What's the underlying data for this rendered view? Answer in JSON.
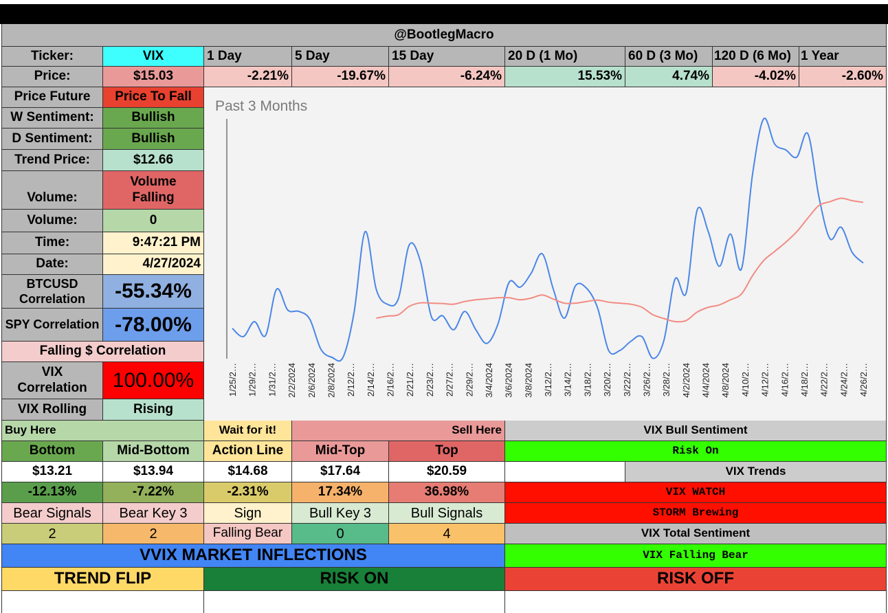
{
  "header": {
    "title": "@BootlegMacro"
  },
  "ticker_row": {
    "label": "Ticker:",
    "ticker": "VIX",
    "periods": [
      "1 Day",
      "5 Day",
      "15 Day",
      "20 D (1 Mo)",
      "60 D (3 Mo)",
      "120 D (6 Mo)",
      "1 Year"
    ]
  },
  "price_row": {
    "label": "Price:",
    "price": "$15.03",
    "changes": [
      "-2.21%",
      "-19.67%",
      "-6.24%",
      "15.53%",
      "4.74%",
      "-4.02%",
      "-2.60%"
    ]
  },
  "left_panel": {
    "price_future": {
      "label": "Price Future",
      "value": "Price To Fall"
    },
    "w_sentiment": {
      "label": "W Sentiment:",
      "value": "Bullish"
    },
    "d_sentiment": {
      "label": "D Sentiment:",
      "value": "Bullish"
    },
    "trend_price": {
      "label": "Trend Price:",
      "value": "$12.66"
    },
    "volume_trend": {
      "label": "Volume:",
      "value": "Volume Falling"
    },
    "volume": {
      "label": "Volume:",
      "value": "0"
    },
    "time": {
      "label": "Time:",
      "value": "9:47:21 PM"
    },
    "date": {
      "label": "Date:",
      "value": "4/27/2024"
    },
    "btc_corr": {
      "label": "BTCUSD Correlation",
      "value": "-55.34%"
    },
    "spy_corr": {
      "label": "SPY Correlation",
      "value": "-78.00%"
    },
    "falling_corr": {
      "label": "Falling $ Correlation"
    },
    "vix_corr": {
      "label": "VIX Correlation",
      "value": "100.00%"
    },
    "vix_rolling": {
      "label": "VIX Rolling",
      "value": "Rising"
    }
  },
  "chart_data": {
    "type": "line",
    "title": "Past 3 Months",
    "x_labels": [
      "1/25/2…",
      "1/29/2…",
      "1/31/2…",
      "2/2/2024",
      "2/6/2024",
      "2/8/2024",
      "2/12/2…",
      "2/14/2…",
      "2/16/2…",
      "2/21/2…",
      "2/23/2…",
      "2/27/2…",
      "2/29/2…",
      "3/4/2024",
      "3/6/2024",
      "3/8/2024",
      "3/12/2…",
      "3/14/2…",
      "3/18/2…",
      "3/20/2…",
      "3/22/2…",
      "3/26/2…",
      "3/28/2…",
      "4/2/2024",
      "4/4/2024",
      "4/8/2024",
      "4/10/2…",
      "4/12/2…",
      "4/16/2…",
      "4/18/2…",
      "4/22/2…",
      "4/24/2…",
      "4/26/2…"
    ],
    "ylim": [
      12.5,
      19.5
    ],
    "grid": false,
    "series": [
      {
        "color": "#4a86e8",
        "values": [
          13.35,
          13.11,
          13.55,
          13.14,
          14.5,
          13.89,
          13.85,
          13.62,
          12.74,
          12.5,
          12.5,
          13.82,
          16.19,
          14.5,
          14.06,
          14.22,
          15.81,
          15.31,
          13.68,
          13.72,
          13.31,
          13.85,
          13.31,
          12.91,
          13.48,
          14.7,
          14.56,
          14.97,
          15.54,
          14.5,
          13.65,
          14.6,
          14.53,
          13.95,
          12.7,
          12.7,
          12.97,
          13.11,
          12.47,
          13.01,
          14.8,
          14.39,
          16.83,
          16.19,
          15.17,
          16.12,
          15.1,
          17.88,
          19.5,
          18.76,
          18.59,
          18.38,
          19.06,
          17.2,
          15.98,
          16.32,
          15.58,
          15.27
        ]
      },
      {
        "color": "#f28b82",
        "values": [
          null,
          null,
          null,
          null,
          null,
          null,
          null,
          null,
          null,
          null,
          null,
          null,
          null,
          13.65,
          13.71,
          13.75,
          14.0,
          14.1,
          14.09,
          14.08,
          14.06,
          14.14,
          14.19,
          14.22,
          14.25,
          14.25,
          14.19,
          14.24,
          14.33,
          14.21,
          14.09,
          14.09,
          14.14,
          14.18,
          14.12,
          14.09,
          14.06,
          13.97,
          13.75,
          13.64,
          13.55,
          13.58,
          13.83,
          13.97,
          14.04,
          14.19,
          14.36,
          14.9,
          15.34,
          15.61,
          15.88,
          16.19,
          16.59,
          16.96,
          17.07,
          17.17,
          17.1,
          17.05
        ]
      }
    ]
  },
  "levels": {
    "buy_here": "Buy Here",
    "wait": "Wait for it!",
    "sell_here": "Sell Here",
    "headers": [
      "Bottom",
      "Mid-Bottom",
      "Action Line",
      "Mid-Top",
      "Top"
    ],
    "prices": [
      "$13.21",
      "$13.94",
      "$14.68",
      "$17.64",
      "$20.59"
    ],
    "pcts": [
      "-12.13%",
      "-7.22%",
      "-2.31%",
      "17.34%",
      "36.98%"
    ],
    "signal_headers": [
      "Bear Signals",
      "Bear Key 3",
      "Sign",
      "Bull Key 3",
      "Bull Signals"
    ],
    "signal_values": [
      "2",
      "2",
      "Falling Bear",
      "0",
      "4"
    ]
  },
  "right_panel": {
    "bull_sentiment_title": "VIX Bull Sentiment",
    "bull_sentiment": "Risk On",
    "trends_title": "VIX Trends",
    "trend_1": "VIX WATCH",
    "trend_2": "STORM Brewing",
    "total_title": "VIX Total Sentiment",
    "total": "VIX Falling Bear"
  },
  "inflections": {
    "title": "VVIX MARKET INFLECTIONS",
    "trend_flip": "TREND FLIP",
    "risk_on": "RISK ON",
    "risk_off": "RISK OFF"
  }
}
